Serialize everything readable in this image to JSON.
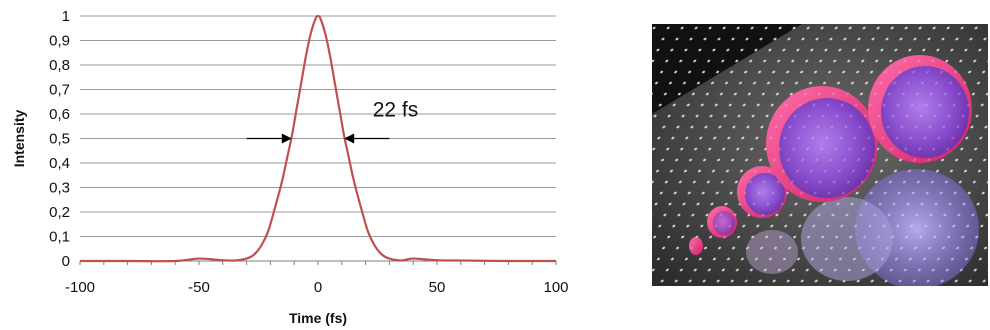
{
  "chart_data": {
    "type": "line",
    "xlabel": "Time (fs)",
    "ylabel": "Intensity",
    "xlim": [
      -100,
      100
    ],
    "ylim": [
      0,
      1
    ],
    "x_ticks": [
      "-100",
      "-50",
      "0",
      "50",
      "100"
    ],
    "x_tick_values": [
      -100,
      -50,
      0,
      50,
      100
    ],
    "y_ticks": [
      "0",
      "0,1",
      "0,2",
      "0,3",
      "0,4",
      "0,5",
      "0,6",
      "0,7",
      "0,8",
      "0,9",
      "1"
    ],
    "y_tick_values": [
      0,
      0.1,
      0.2,
      0.3,
      0.4,
      0.5,
      0.6,
      0.7,
      0.8,
      0.9,
      1
    ],
    "grid": "horizontal",
    "line_color": "#c0504d",
    "series": [
      {
        "x": [
          -100,
          -80,
          -60,
          -50,
          -40,
          -35,
          -30,
          -27,
          -24,
          -21,
          -18,
          -15,
          -13,
          -11,
          -9,
          -7,
          -5,
          -3,
          -1,
          0,
          1,
          3,
          5,
          7,
          9,
          11,
          13,
          15,
          18,
          21,
          24,
          27,
          30,
          35,
          40,
          50,
          60,
          80,
          100
        ],
        "y": [
          0,
          0,
          0,
          0.01,
          0.003,
          0.002,
          0.01,
          0.025,
          0.06,
          0.12,
          0.22,
          0.33,
          0.42,
          0.51,
          0.62,
          0.73,
          0.84,
          0.93,
          0.99,
          1.0,
          0.99,
          0.93,
          0.84,
          0.73,
          0.62,
          0.51,
          0.42,
          0.33,
          0.22,
          0.12,
          0.06,
          0.025,
          0.01,
          0.002,
          0.01,
          0.003,
          0.002,
          0,
          0
        ]
      }
    ],
    "annotation": {
      "text": "22 fs",
      "left_x": -11,
      "right_x": 11,
      "y": 0.5,
      "text_x": 23,
      "text_y": 0.59,
      "arrow_length": 19
    }
  },
  "photo": {
    "subject": "photo of colored optical mirrors on an optical breadboard"
  }
}
